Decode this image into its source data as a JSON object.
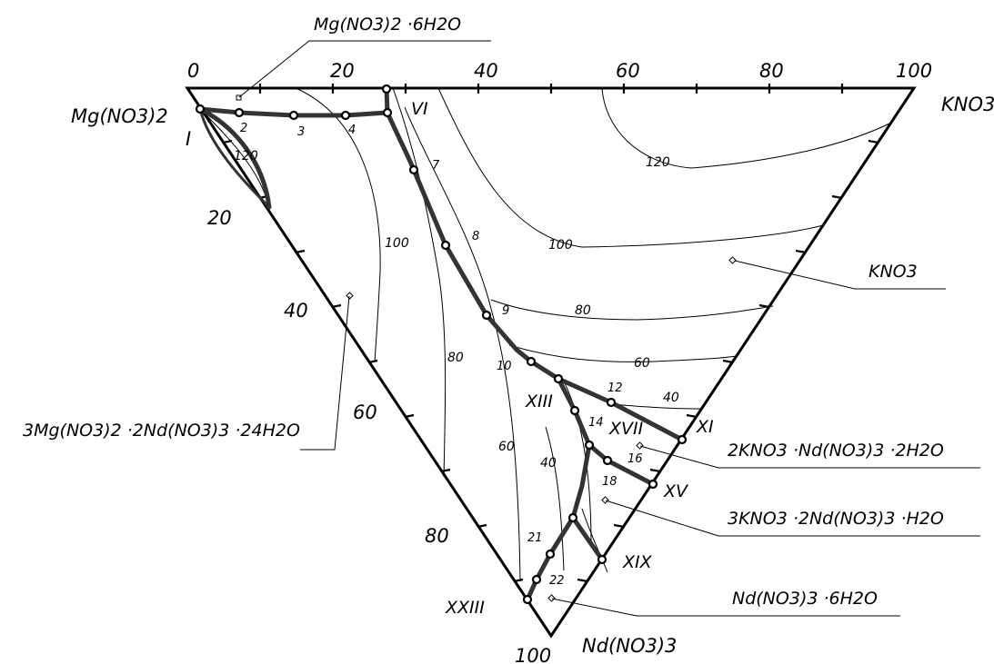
{
  "vertices": {
    "top_left": "Mg(NO3)2",
    "top_right": "KNO3",
    "bottom": "Nd(NO3)3"
  },
  "scale_top": [
    "0",
    "20",
    "40",
    "60",
    "80",
    "100"
  ],
  "scale_left": [
    "20",
    "40",
    "60",
    "80",
    "100"
  ],
  "fields": [
    "Mg(NO3)2 ·6H2O",
    "KNO3",
    "3Mg(NO3)2 ·2Nd(NO3)3 ·24H2O",
    "2KNO3 ·Nd(NO3)3 ·2H2O",
    "3KNO3 ·2Nd(NO3)3 ·H2O",
    "Nd(NO3)3 ·6H2O"
  ],
  "isotherms": [
    "120",
    "100",
    "80",
    "60",
    "40",
    "120",
    "100",
    "80",
    "60",
    "40"
  ],
  "point_labels": [
    "I",
    "2",
    "3",
    "4",
    "VI",
    "7",
    "8",
    "9",
    "10",
    "XIII",
    "12",
    "14",
    "XVII",
    "XI",
    "16",
    "18",
    "XV",
    "21",
    "22",
    "XIX",
    "XXIII"
  ],
  "colors": {
    "line": "#000000",
    "eutonic": "#333333"
  }
}
